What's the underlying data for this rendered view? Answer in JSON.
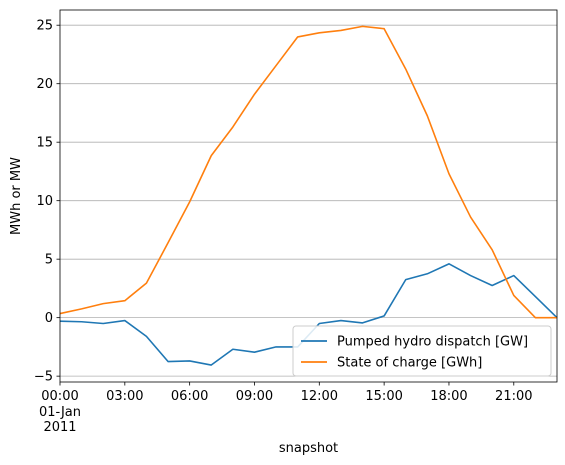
{
  "chart_data": {
    "type": "line",
    "xlabel": "snapshot",
    "ylabel": "MWh or MW",
    "x": [
      0,
      1,
      2,
      3,
      4,
      5,
      6,
      7,
      8,
      9,
      10,
      11,
      12,
      13,
      14,
      15,
      16,
      17,
      18,
      19,
      20,
      21,
      22,
      23
    ],
    "xlim": [
      0,
      23
    ],
    "ylim": [
      -5.5,
      26.3
    ],
    "x_ticks": [
      {
        "x": 0,
        "label": "00:00"
      },
      {
        "x": 3,
        "label": "03:00"
      },
      {
        "x": 6,
        "label": "06:00"
      },
      {
        "x": 9,
        "label": "09:00"
      },
      {
        "x": 12,
        "label": "12:00"
      },
      {
        "x": 15,
        "label": "15:00"
      },
      {
        "x": 18,
        "label": "18:00"
      },
      {
        "x": 21,
        "label": "21:00"
      }
    ],
    "x_sublabel_lines": [
      "01-Jan",
      "2011"
    ],
    "y_ticks": [
      -5,
      0,
      5,
      10,
      15,
      20,
      25
    ],
    "grid": "horizontal",
    "legend_position": "lower-right",
    "series": [
      {
        "name": "Pumped hydro dispatch [GW]",
        "color": "#1f77b4",
        "values": [
          -0.3,
          -0.35,
          -0.5,
          -0.25,
          -1.6,
          -3.75,
          -3.7,
          -4.05,
          -2.7,
          -2.95,
          -2.5,
          -2.5,
          -0.5,
          -0.25,
          -0.45,
          0.15,
          3.25,
          3.75,
          4.6,
          3.6,
          2.75,
          3.6,
          1.8,
          0.0
        ]
      },
      {
        "name": "State of charge [GWh]",
        "color": "#ff7f0e",
        "values": [
          0.35,
          0.75,
          1.2,
          1.45,
          2.95,
          6.4,
          9.9,
          13.85,
          16.3,
          19.1,
          21.55,
          24.0,
          24.35,
          24.55,
          24.9,
          24.7,
          21.25,
          17.25,
          12.3,
          8.6,
          5.8,
          1.9,
          0.0,
          0.0
        ]
      }
    ]
  }
}
